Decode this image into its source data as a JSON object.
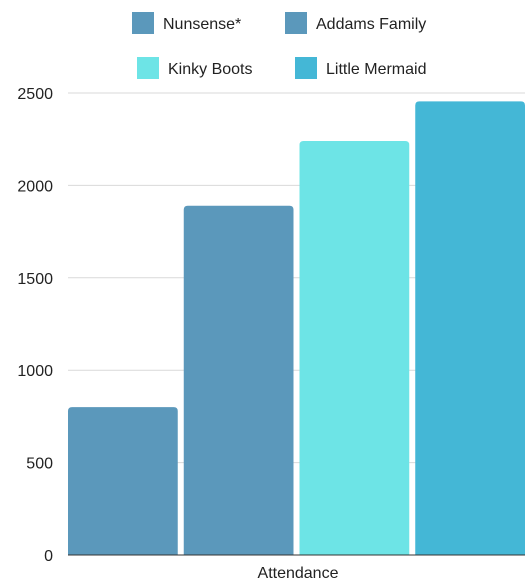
{
  "chart_data": {
    "type": "bar",
    "title": "",
    "xlabel": "Attendance",
    "ylabel": "",
    "categories": [
      "Attendance"
    ],
    "series": [
      {
        "name": "Nunsense*",
        "values": [
          800
        ],
        "color": "#5b98bb"
      },
      {
        "name": "Addams Family",
        "values": [
          1890
        ],
        "color": "#5b98bb"
      },
      {
        "name": "Kinky Boots",
        "values": [
          2240
        ],
        "color": "#6de4e6"
      },
      {
        "name": "Little Mermaid",
        "values": [
          2455
        ],
        "color": "#44b7d6"
      }
    ],
    "ylim": [
      0,
      2500
    ],
    "yticks": [
      "0",
      "500",
      "1000",
      "1500",
      "2000",
      "2500"
    ],
    "grid": true,
    "legend_position": "top"
  }
}
